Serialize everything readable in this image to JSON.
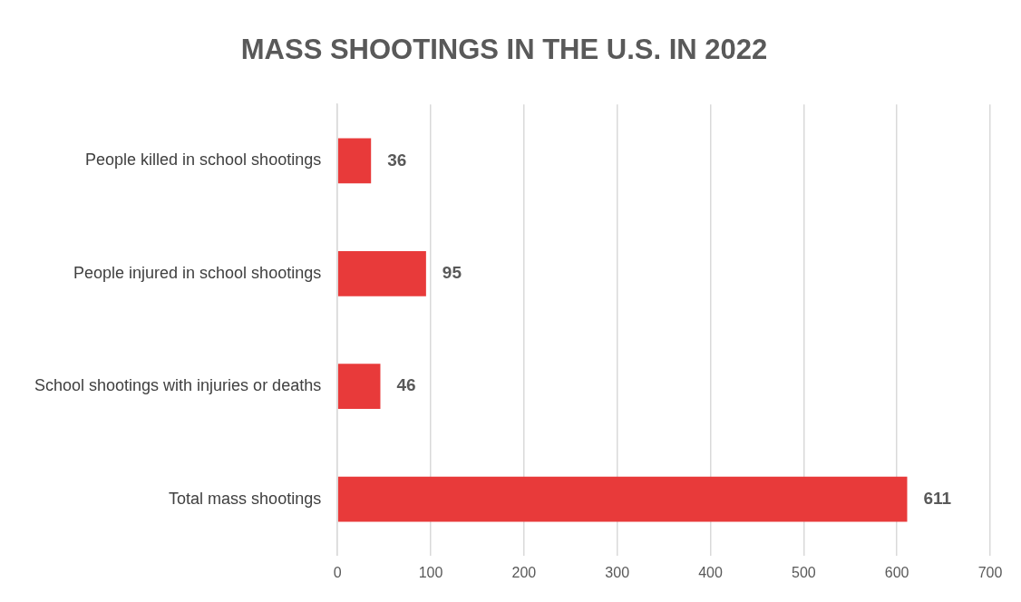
{
  "chart_data": {
    "type": "bar",
    "orientation": "horizontal",
    "title": "MASS SHOOTINGS IN THE U.S. IN 2022",
    "categories": [
      "People killed in school shootings",
      "People injured in school shootings",
      "School shootings with injuries or deaths",
      "Total mass shootings"
    ],
    "values": [
      36,
      95,
      46,
      611
    ],
    "color": "#e83a3a",
    "xlim": [
      0,
      700
    ],
    "xticks": [
      0,
      100,
      200,
      300,
      400,
      500,
      600,
      700
    ],
    "grid": "x",
    "legend": false,
    "data_labels": true
  }
}
